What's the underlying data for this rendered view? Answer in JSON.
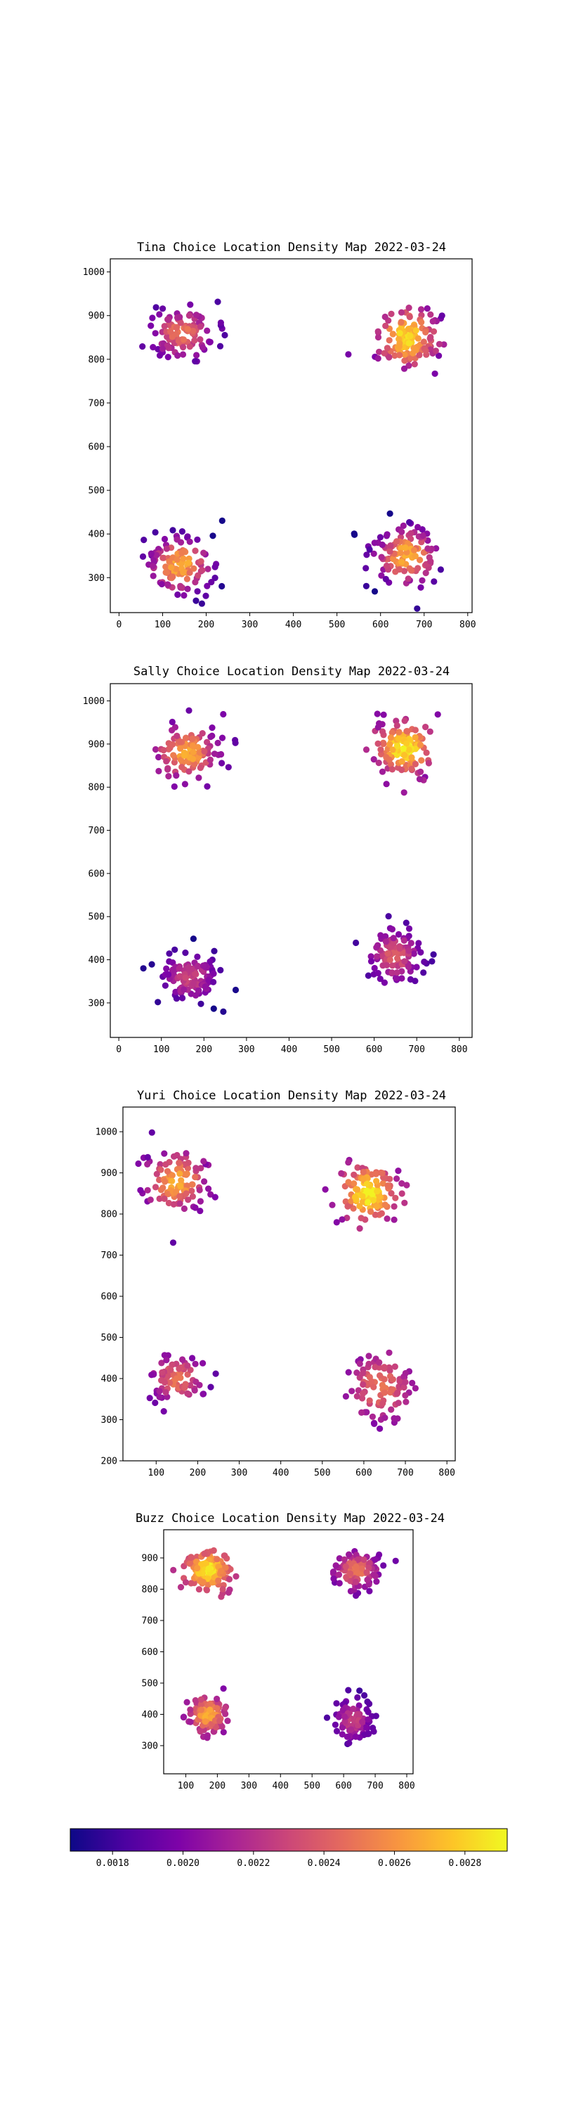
{
  "colormap": "plasma",
  "colorbar": {
    "range": [
      0.00168,
      0.00292
    ],
    "tick_values": [
      0.0018,
      0.002,
      0.0022,
      0.0024,
      0.0026,
      0.0028
    ],
    "tick_labels": [
      "0.0018",
      "0.0020",
      "0.0022",
      "0.0024",
      "0.0026",
      "0.0028"
    ]
  },
  "chart_data": [
    {
      "type": "scatter",
      "title": "Tina Choice Location Density Map 2022-03-24",
      "xlim": [
        -20,
        810
      ],
      "ylim": [
        220,
        1030
      ],
      "xticks": [
        0,
        100,
        200,
        300,
        400,
        500,
        600,
        700,
        800
      ],
      "yticks": [
        300,
        400,
        500,
        600,
        700,
        800,
        900,
        1000
      ],
      "clusters": [
        {
          "center": [
            145,
            860
          ],
          "spread": [
            50,
            40
          ],
          "count": 110,
          "density": [
            0.0018,
            0.0025
          ]
        },
        {
          "center": [
            660,
            850
          ],
          "spread": [
            50,
            48
          ],
          "count": 130,
          "density": [
            0.0019,
            0.00285
          ]
        },
        {
          "center": [
            140,
            330
          ],
          "spread": [
            52,
            48
          ],
          "count": 120,
          "density": [
            0.0017,
            0.0027
          ]
        },
        {
          "center": [
            660,
            350
          ],
          "spread": [
            52,
            48
          ],
          "count": 120,
          "density": [
            0.0017,
            0.0027
          ]
        }
      ]
    },
    {
      "type": "scatter",
      "title": "Sally Choice Location Density Map 2022-03-24",
      "xlim": [
        -20,
        830
      ],
      "ylim": [
        220,
        1040
      ],
      "xticks": [
        0,
        100,
        200,
        300,
        400,
        500,
        600,
        700,
        800
      ],
      "yticks": [
        300,
        400,
        500,
        600,
        700,
        800,
        900,
        1000
      ],
      "clusters": [
        {
          "center": [
            160,
            880
          ],
          "spread": [
            48,
            42
          ],
          "count": 120,
          "density": [
            0.0019,
            0.0027
          ]
        },
        {
          "center": [
            670,
            890
          ],
          "spread": [
            48,
            42
          ],
          "count": 130,
          "density": [
            0.002,
            0.0029
          ]
        },
        {
          "center": [
            165,
            360
          ],
          "spread": [
            50,
            42
          ],
          "count": 110,
          "density": [
            0.0017,
            0.0023
          ]
        },
        {
          "center": [
            650,
            410
          ],
          "spread": [
            42,
            42
          ],
          "count": 110,
          "density": [
            0.0018,
            0.0024
          ]
        }
      ]
    },
    {
      "type": "scatter",
      "title": "Yuri Choice Location Density Map 2022-03-24",
      "xlim": [
        20,
        820
      ],
      "ylim": [
        200,
        1060
      ],
      "xticks": [
        100,
        200,
        300,
        400,
        500,
        600,
        700,
        800
      ],
      "yticks": [
        200,
        300,
        400,
        500,
        600,
        700,
        800,
        900,
        1000
      ],
      "clusters": [
        {
          "center": [
            150,
            880
          ],
          "spread": [
            50,
            50
          ],
          "count": 110,
          "density": [
            0.0019,
            0.0027
          ]
        },
        {
          "center": [
            610,
            850
          ],
          "spread": [
            50,
            50
          ],
          "count": 130,
          "density": [
            0.002,
            0.0029
          ]
        },
        {
          "center": [
            150,
            400
          ],
          "spread": [
            42,
            40
          ],
          "count": 80,
          "density": [
            0.0019,
            0.0025
          ]
        },
        {
          "center": [
            640,
            380
          ],
          "spread": [
            55,
            60
          ],
          "count": 100,
          "density": [
            0.0019,
            0.0025
          ]
        }
      ]
    },
    {
      "type": "scatter",
      "title": "Buzz Choice Location Density Map 2022-03-24",
      "xlim": [
        30,
        820
      ],
      "ylim": [
        210,
        990
      ],
      "xticks": [
        100,
        200,
        300,
        400,
        500,
        600,
        700,
        800
      ],
      "yticks": [
        300,
        400,
        500,
        600,
        700,
        800,
        900
      ],
      "clusters": [
        {
          "center": [
            170,
            860
          ],
          "spread": [
            45,
            40
          ],
          "count": 150,
          "density": [
            0.0022,
            0.0029
          ]
        },
        {
          "center": [
            640,
            860
          ],
          "spread": [
            50,
            40
          ],
          "count": 110,
          "density": [
            0.0019,
            0.0025
          ]
        },
        {
          "center": [
            170,
            400
          ],
          "spread": [
            40,
            40
          ],
          "count": 110,
          "density": [
            0.002,
            0.0027
          ]
        },
        {
          "center": [
            630,
            380
          ],
          "spread": [
            40,
            45
          ],
          "count": 100,
          "density": [
            0.0018,
            0.0023
          ]
        }
      ]
    }
  ]
}
